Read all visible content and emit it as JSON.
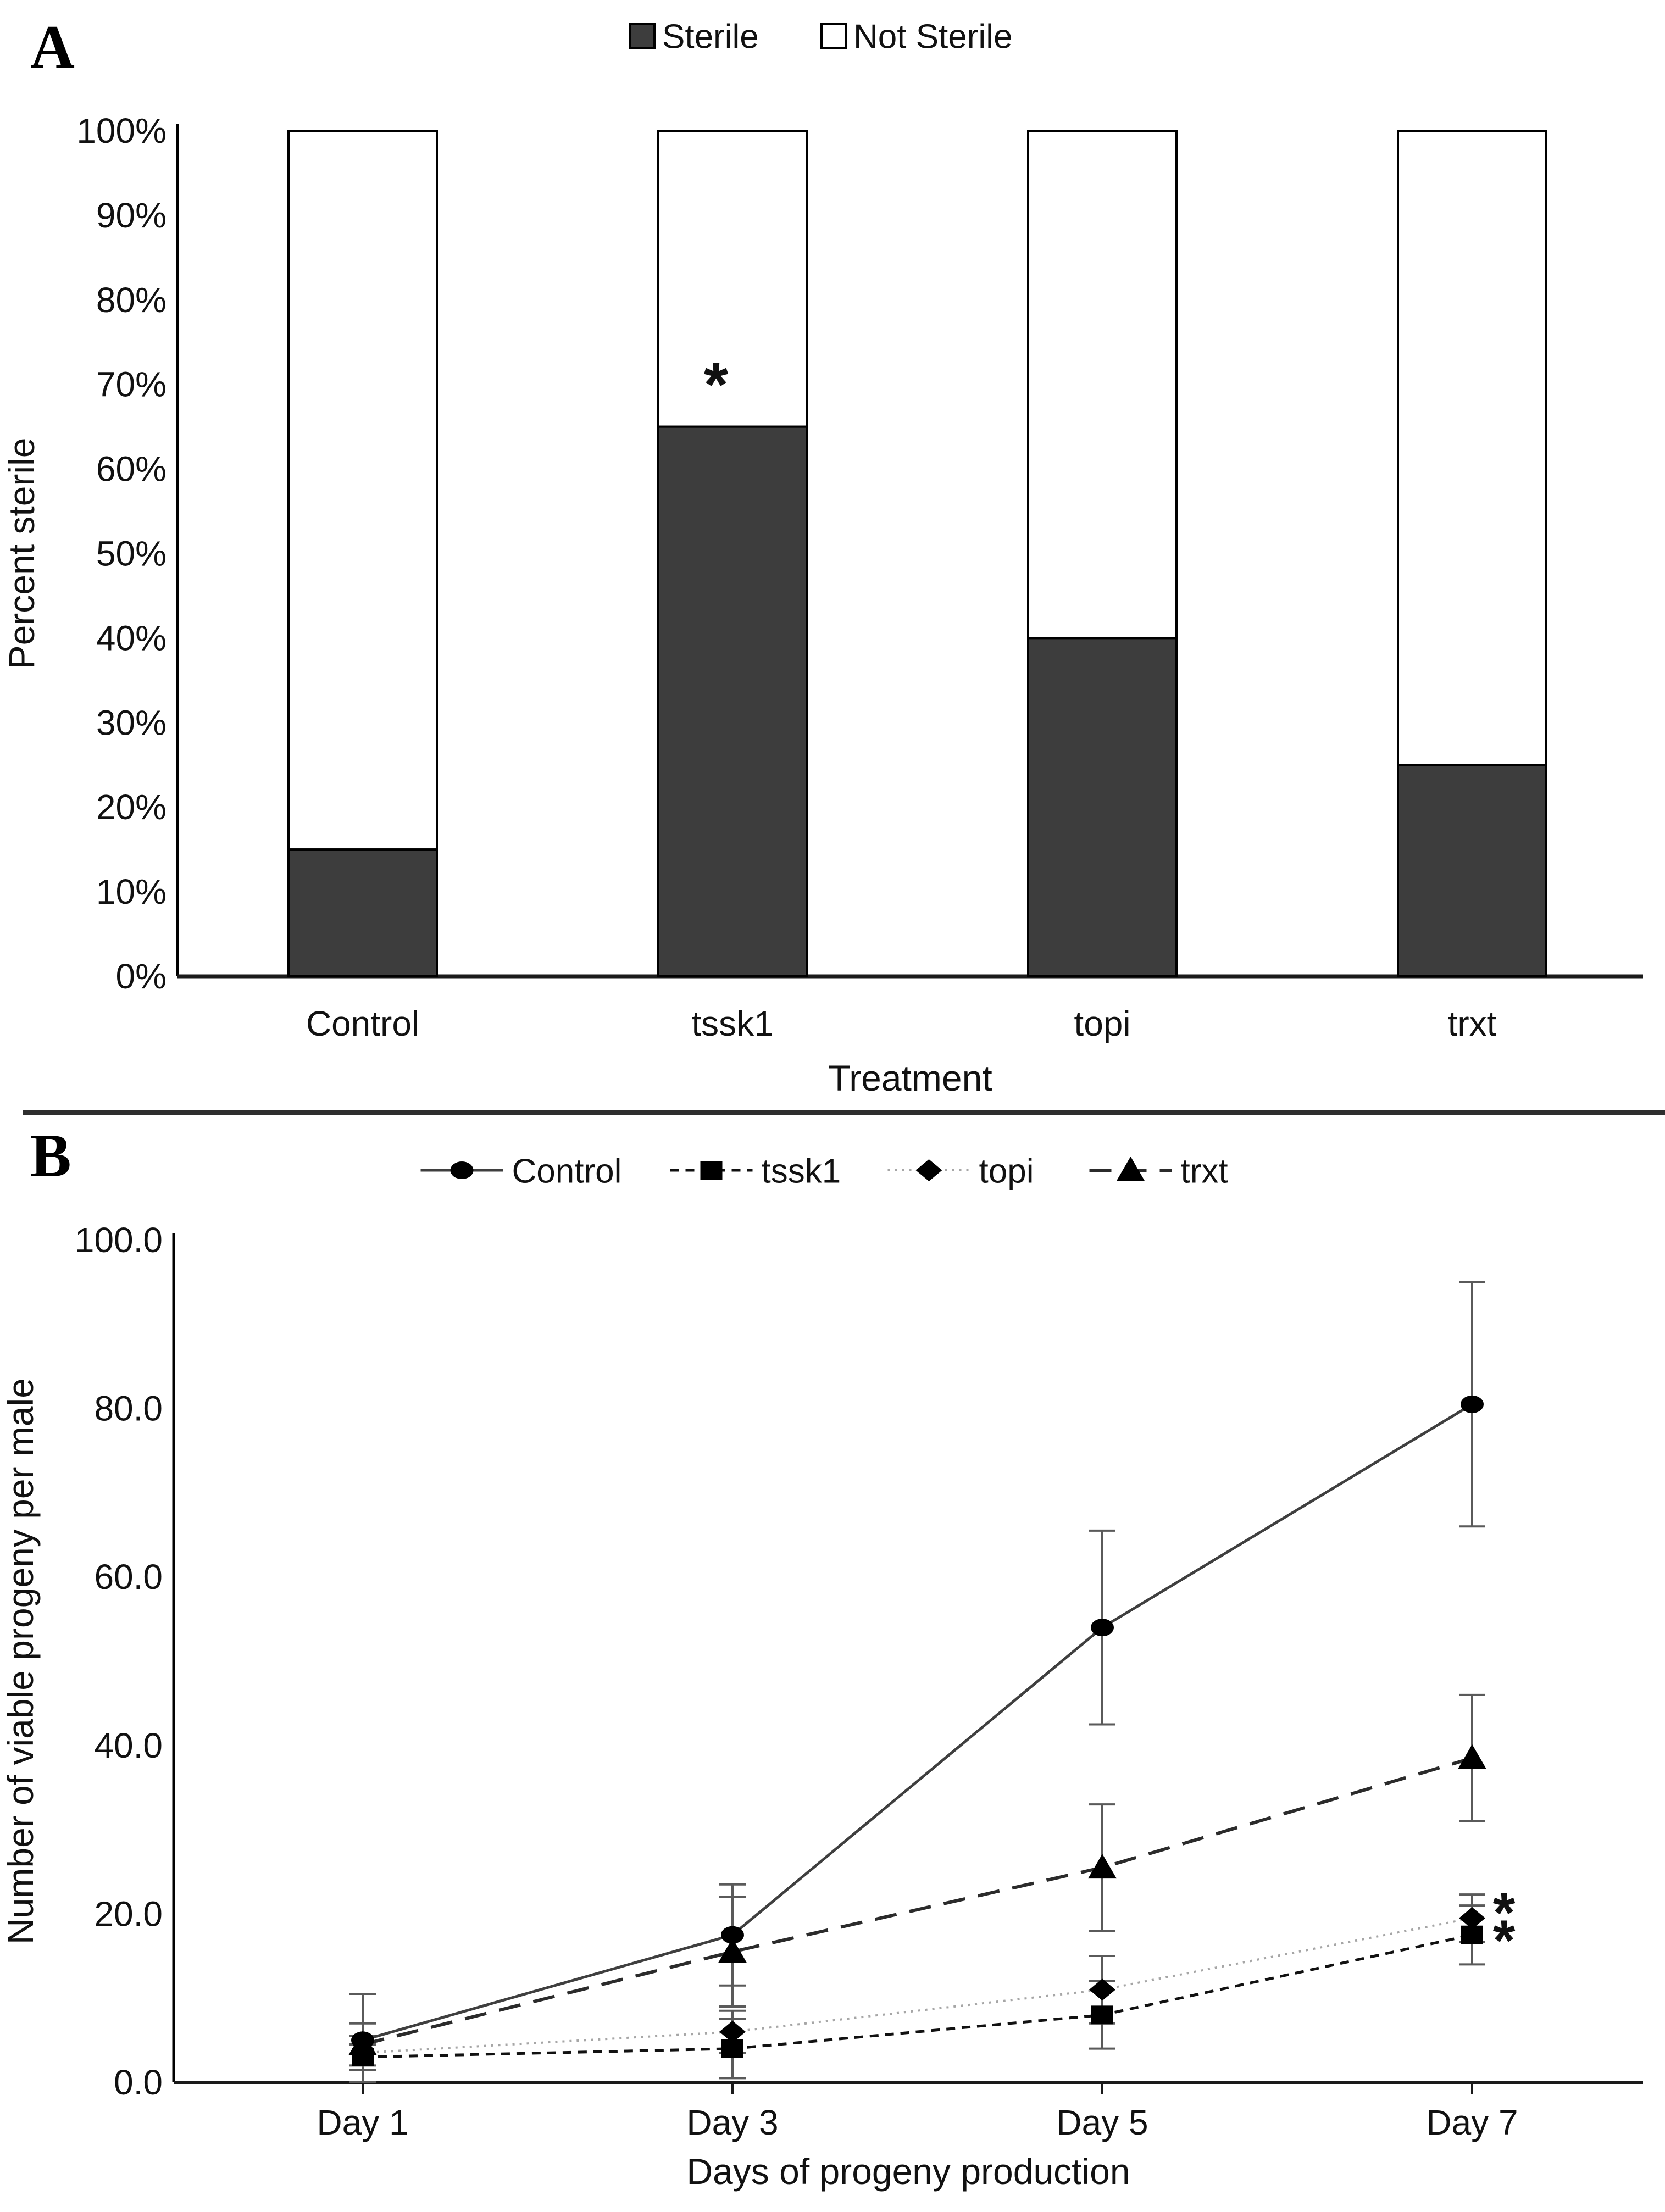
{
  "figure": {
    "panel_a_label": "A",
    "panel_b_label": "B"
  },
  "chart_data": [
    {
      "panel": "A",
      "type": "bar",
      "stacked": true,
      "title": "",
      "categories": [
        "Control",
        "tssk1",
        "topi",
        "trxt"
      ],
      "series": [
        {
          "name": "Sterile",
          "values": [
            15,
            65,
            40,
            25
          ],
          "fill": "#3d3d3d"
        },
        {
          "name": "Not Sterile",
          "values": [
            85,
            35,
            60,
            75
          ],
          "fill": "#ffffff"
        }
      ],
      "xlabel": "Treatment",
      "ylabel": "Percent sterile",
      "ylim": [
        0,
        100
      ],
      "yticks": [
        "0%",
        "10%",
        "20%",
        "30%",
        "40%",
        "50%",
        "60%",
        "70%",
        "80%",
        "90%",
        "100%"
      ],
      "ytick_values": [
        0,
        10,
        20,
        30,
        40,
        50,
        60,
        70,
        80,
        90,
        100
      ],
      "grid": false,
      "legend_position": "top",
      "annotations": [
        {
          "category": "tssk1",
          "value": 70,
          "dx": -30,
          "text": "*"
        }
      ]
    },
    {
      "panel": "B",
      "type": "line",
      "title": "",
      "categories": [
        "Day 1",
        "Day 3",
        "Day 5",
        "Day 7"
      ],
      "series": [
        {
          "name": "Control",
          "marker": "circle",
          "line": "solid",
          "color": "#3f3f3f",
          "values": [
            5.0,
            17.5,
            54.0,
            80.5
          ],
          "errors": [
            5.5,
            6.0,
            11.5,
            14.5
          ]
        },
        {
          "name": "tssk1",
          "marker": "square",
          "line": "dash-fine",
          "color": "#111111",
          "values": [
            3.0,
            4.0,
            8.0,
            17.5
          ],
          "errors": [
            1.5,
            3.5,
            4.0,
            3.5
          ]
        },
        {
          "name": "topi",
          "marker": "diamond",
          "line": "dotted",
          "color": "#a6a6a6",
          "values": [
            3.5,
            6.0,
            11.0,
            19.5
          ],
          "errors": [
            2.0,
            2.5,
            4.0,
            2.8
          ]
        },
        {
          "name": "trxt",
          "marker": "triangle",
          "line": "dash-long",
          "color": "#2b2b2b",
          "values": [
            4.5,
            15.5,
            25.5,
            38.5
          ],
          "errors": [
            2.5,
            6.5,
            7.5,
            7.5
          ]
        }
      ],
      "xlabel": "Days of progeny production",
      "ylabel": "Number of viable progeny per male",
      "ylim": [
        0,
        100
      ],
      "yticks": [
        "0.0",
        "20.0",
        "40.0",
        "60.0",
        "80.0",
        "100.0"
      ],
      "ytick_values": [
        0,
        20,
        40,
        60,
        80,
        100
      ],
      "grid": false,
      "legend_position": "top",
      "annotations": [
        {
          "category": "Day 7",
          "value": 20.3,
          "dx": 58,
          "text": "*"
        },
        {
          "category": "Day 7",
          "value": 17.0,
          "dx": 58,
          "text": "*"
        }
      ]
    }
  ]
}
